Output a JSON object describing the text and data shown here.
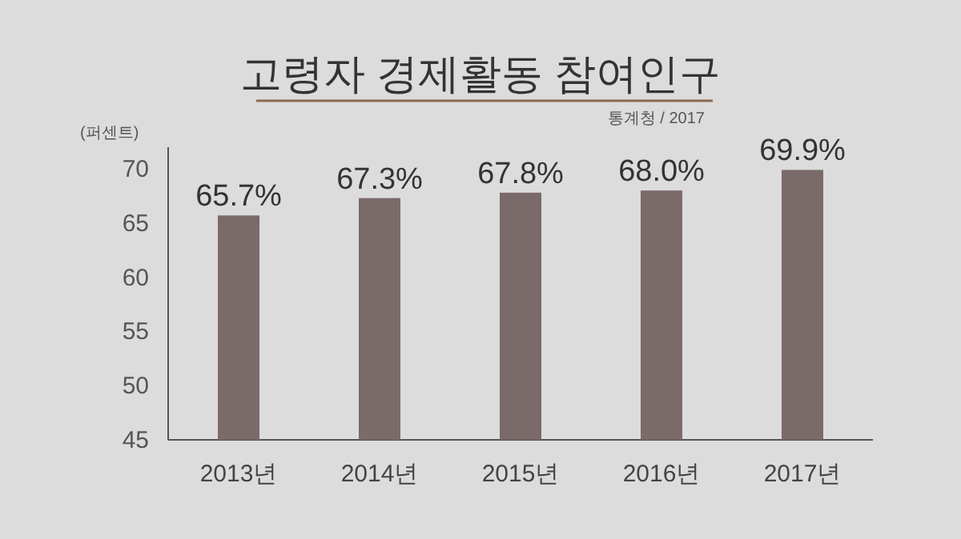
{
  "chart_data": {
    "type": "bar",
    "title": "고령자 경제활동 참여인구",
    "ylabel": "(퍼센트)",
    "annotations": [
      "통계청 / 2017"
    ],
    "categories": [
      "2013년",
      "2014년",
      "2015년",
      "2016년",
      "2017년"
    ],
    "values": [
      65.7,
      67.3,
      67.8,
      68.0,
      69.9
    ],
    "value_labels": [
      "65.7%",
      "67.3%",
      "67.8%",
      "68.0%",
      "69.9%"
    ],
    "color": "#7b6a6a",
    "ylim": [
      45,
      72
    ],
    "yticks": [
      45,
      50,
      55,
      60,
      65,
      70
    ],
    "grid": false
  }
}
